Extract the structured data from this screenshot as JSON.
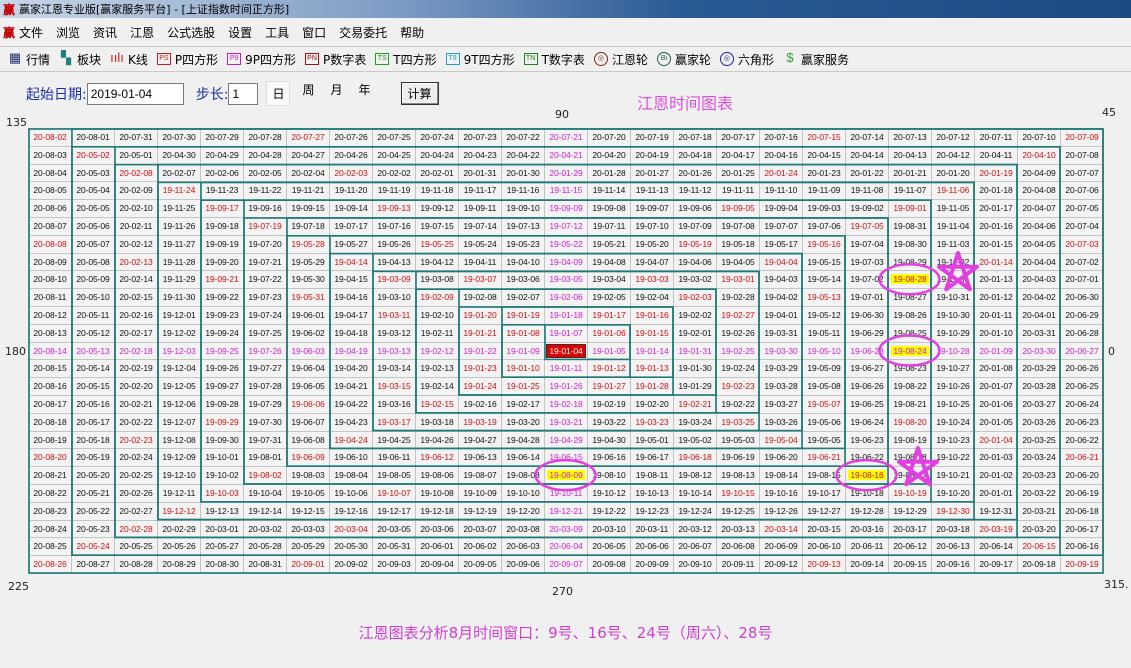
{
  "window": {
    "title": "赢家江恩专业版[赢家服务平台] - [上证指数时间正方形]",
    "logo": "赢"
  },
  "menu": [
    "文件",
    "浏览",
    "资讯",
    "江恩",
    "公式选股",
    "设置",
    "工具",
    "窗口",
    "交易委托",
    "帮助"
  ],
  "toolbar": [
    {
      "label": "行情",
      "icon": "table-icon",
      "icon_text": "▦",
      "color": "#203070"
    },
    {
      "label": "板块",
      "icon": "blocks-icon",
      "icon_text": "▚",
      "color": "#208080"
    },
    {
      "label": "K线",
      "icon": "candlestick-icon",
      "icon_text": "ıılı",
      "color": "#d02020"
    },
    {
      "label": "P四方形",
      "icon": "ps-icon",
      "icon_text": "PS",
      "color": "#c02020"
    },
    {
      "label": "9P四方形",
      "icon": "p9-icon",
      "icon_text": "P9",
      "color": "#c020c0"
    },
    {
      "label": "P数字表",
      "icon": "pn-icon",
      "icon_text": "PN",
      "color": "#a01010"
    },
    {
      "label": "T四方形",
      "icon": "ts-icon",
      "icon_text": "TS",
      "color": "#20a020"
    },
    {
      "label": "9T四方形",
      "icon": "t9-icon",
      "icon_text": "T9",
      "color": "#20a0c0"
    },
    {
      "label": "T数字表",
      "icon": "tn-icon",
      "icon_text": "TN",
      "color": "#208020"
    },
    {
      "label": "江恩轮",
      "icon": "gann-wheel-icon",
      "icon_text": "◎",
      "color": "#802020"
    },
    {
      "label": "赢家轮",
      "icon": "winner-wheel-icon",
      "icon_text": "Bi",
      "color": "#206040"
    },
    {
      "label": "六角形",
      "icon": "hexagon-icon",
      "icon_text": "◎",
      "color": "#2020a0"
    },
    {
      "label": "赢家服务",
      "icon": "dollar-icon",
      "icon_text": "$",
      "color": "#30a030"
    }
  ],
  "params": {
    "start_label": "起始日期:",
    "start_date": "2019-01-04",
    "step_label": "步长:",
    "step": "1",
    "units": [
      "日",
      "周",
      "月",
      "年"
    ],
    "selected_unit": "日",
    "calc_label": "计算"
  },
  "chart": {
    "title": "江恩时间图表",
    "angles": {
      "tl": "135",
      "top": "90",
      "tr": "45",
      "left": "180",
      "right": "0",
      "bl": "225",
      "bottom": "270",
      "br": "315."
    },
    "center_date": "19-01-04",
    "highlighted": [
      "19-08-09",
      "19-08-16",
      "19-08-24",
      "19-08-28"
    ],
    "colors": {
      "cross": "#d020d0",
      "angle_lines": "#d01010",
      "highlight": "#ffff00",
      "center": "#e00000",
      "box_lines": "#1f7a78",
      "annotation": "#e040e0"
    }
  },
  "caption": "江恩图表分析8月时间窗口：9号、16号、24号（周六）、28号"
}
